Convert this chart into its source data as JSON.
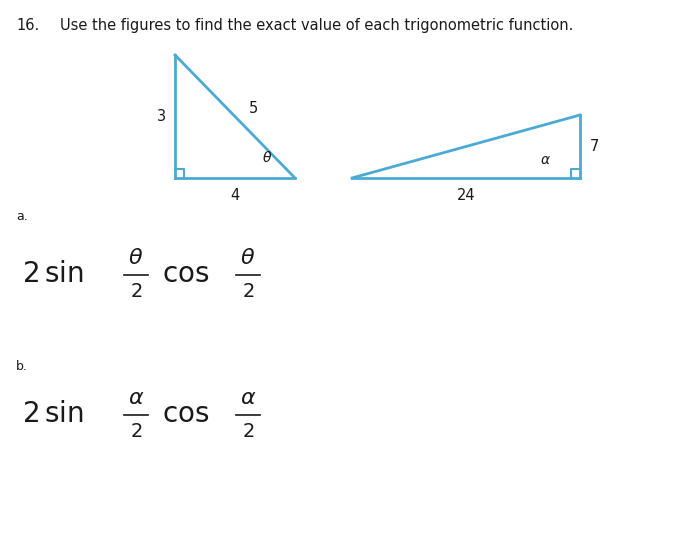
{
  "background_color": "#ffffff",
  "figure_width": 6.88,
  "figure_height": 5.33,
  "dpi": 100,
  "problem_number": "16.",
  "problem_text": "Use the figures to find the exact value of each trigonometric function.",
  "tri1_color": "#4baad4",
  "tri2_color": "#4baad4",
  "font_color": "#1a1a1a",
  "part_a": "a.",
  "part_b": "b."
}
